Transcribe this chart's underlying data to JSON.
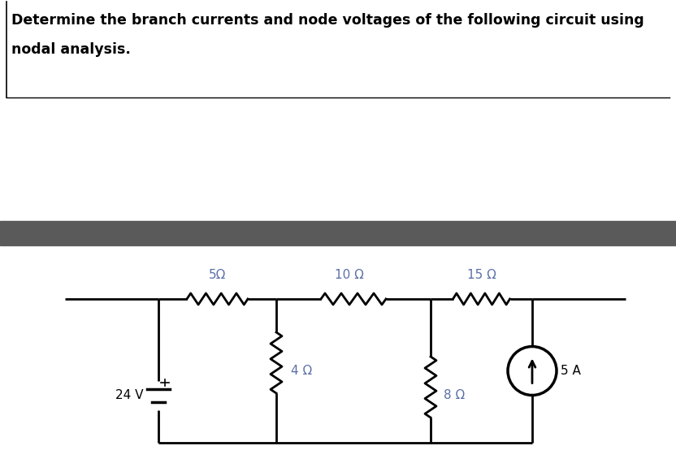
{
  "title_text_line1": "Determine the branch currents and node voltages of the following circuit using",
  "title_text_line2": "nodal analysis.",
  "title_fontsize": 12.5,
  "bg_color": "#ffffff",
  "gray_bar_color": "#5a5a5a",
  "text_color_label": "#5b6fa8",
  "line_color": "#000000",
  "resistor_labels": [
    "5Ω",
    "10 Ω",
    "15 Ω",
    "4 Ω",
    "8 Ω"
  ],
  "source_voltage_label": "24 V",
  "source_current_label": "5 A",
  "fig_width": 8.32,
  "fig_height": 5.65,
  "dpi": 100
}
